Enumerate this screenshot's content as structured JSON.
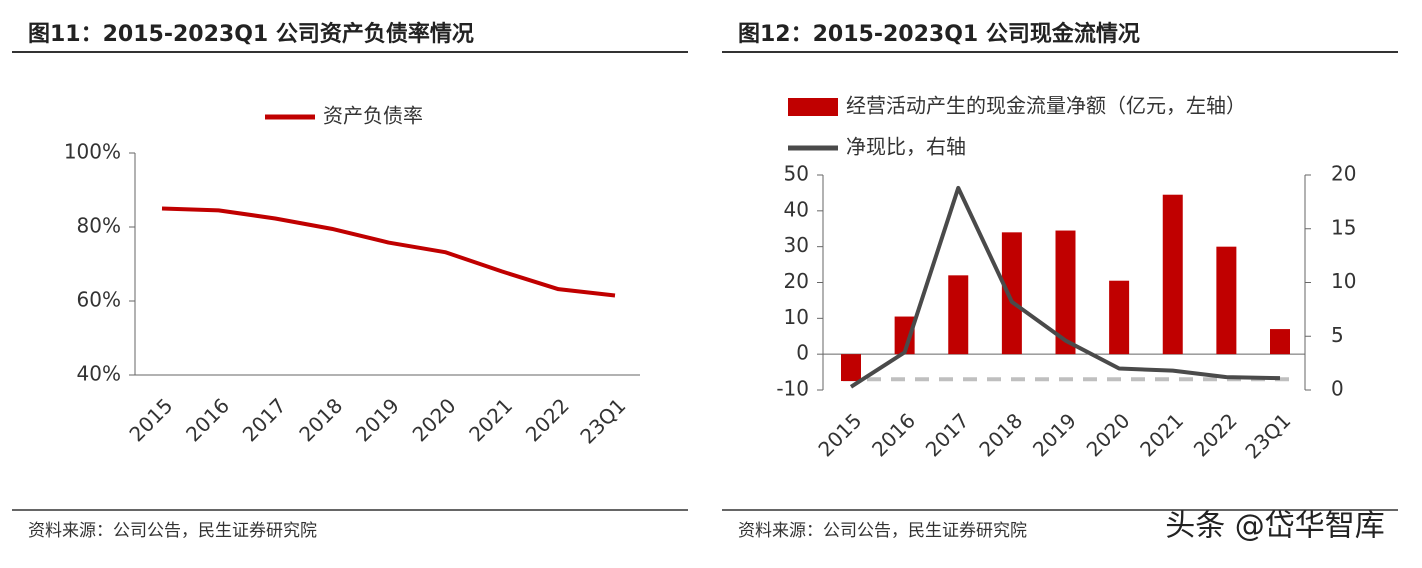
{
  "chart_data": [
    {
      "type": "line",
      "title": "图11：2015-2023Q1 公司资产负债率情况",
      "categories": [
        "2015",
        "2016",
        "2017",
        "2018",
        "2019",
        "2020",
        "2021",
        "2022",
        "23Q1"
      ],
      "series": [
        {
          "name": "资产负债率",
          "color": "#c00000",
          "values": [
            85,
            84.5,
            82.3,
            79.5,
            75.8,
            73.2,
            68,
            63.2,
            61.5
          ]
        }
      ],
      "ylim": [
        40,
        100
      ],
      "yticks": [
        {
          "value": 40,
          "label": "40%"
        },
        {
          "value": 60,
          "label": "60%"
        },
        {
          "value": 80,
          "label": "80%"
        },
        {
          "value": 100,
          "label": "100%"
        }
      ],
      "source": "资料来源：公司公告，民生证券研究院"
    },
    {
      "type": "bar-line",
      "title": "图12：2015-2023Q1 公司现金流情况",
      "categories": [
        "2015",
        "2016",
        "2017",
        "2018",
        "2019",
        "2020",
        "2021",
        "2022",
        "23Q1"
      ],
      "series": [
        {
          "name": "经营活动产生的现金流量净额（亿元，左轴）",
          "color": "#c00000",
          "type": "bar",
          "values": [
            -7.5,
            10.5,
            22,
            34,
            34.5,
            20.5,
            44.5,
            30,
            7
          ]
        },
        {
          "name": "净现比，右轴",
          "color": "#4a4a4a",
          "type": "line",
          "axis": "y2",
          "values": [
            0.3,
            3.5,
            18.8,
            8.2,
            4.6,
            2,
            1.8,
            1.2,
            1.1
          ]
        }
      ],
      "ylim": [
        -10,
        50
      ],
      "yticks": [
        -10,
        0,
        10,
        20,
        30,
        40,
        50
      ],
      "y2lim": [
        0,
        20
      ],
      "y2ticks": [
        0,
        5,
        10,
        15,
        20
      ],
      "reference_line": {
        "value": 1,
        "axis": "y2",
        "color": "#bfbfbf"
      },
      "source": "资料来源：公司公告，民生证券研究院"
    }
  ],
  "watermark": "头条 @岱华智库"
}
